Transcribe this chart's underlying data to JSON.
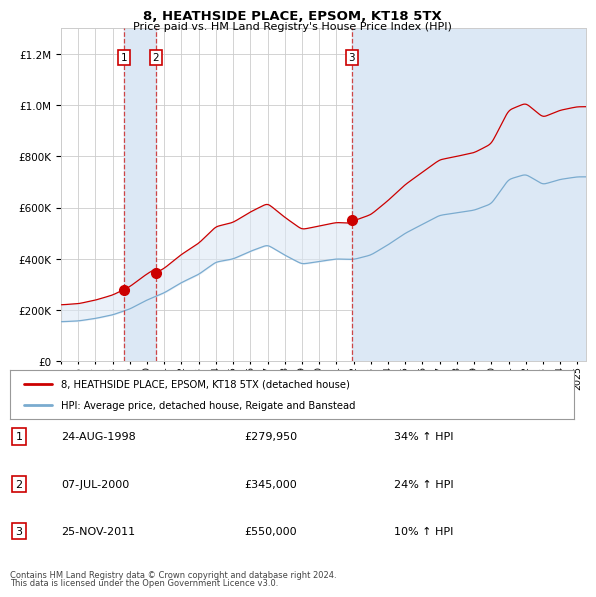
{
  "title": "8, HEATHSIDE PLACE, EPSOM, KT18 5TX",
  "subtitle": "Price paid vs. HM Land Registry's House Price Index (HPI)",
  "legend_line1": "8, HEATHSIDE PLACE, EPSOM, KT18 5TX (detached house)",
  "legend_line2": "HPI: Average price, detached house, Reigate and Banstead",
  "footer1": "Contains HM Land Registry data © Crown copyright and database right 2024.",
  "footer2": "This data is licensed under the Open Government Licence v3.0.",
  "transactions": [
    {
      "num": 1,
      "date": "24-AUG-1998",
      "price": 279950,
      "pct": "34%",
      "dir": "↑",
      "x_year": 1998.64
    },
    {
      "num": 2,
      "date": "07-JUL-2000",
      "price": 345000,
      "pct": "24%",
      "dir": "↑",
      "x_year": 2000.52
    },
    {
      "num": 3,
      "date": "25-NOV-2011",
      "price": 550000,
      "pct": "10%",
      "dir": "↑",
      "x_year": 2011.9
    }
  ],
  "red_line_color": "#cc0000",
  "blue_line_color": "#7aabcf",
  "shade_color": "#dce8f5",
  "vline_color": "#cc3333",
  "grid_color": "#cccccc",
  "box_color": "#cc0000",
  "ylim": [
    0,
    1300000
  ],
  "xlim_left": 1995.0,
  "xlim_right": 2025.5,
  "background_color": "#ffffff"
}
